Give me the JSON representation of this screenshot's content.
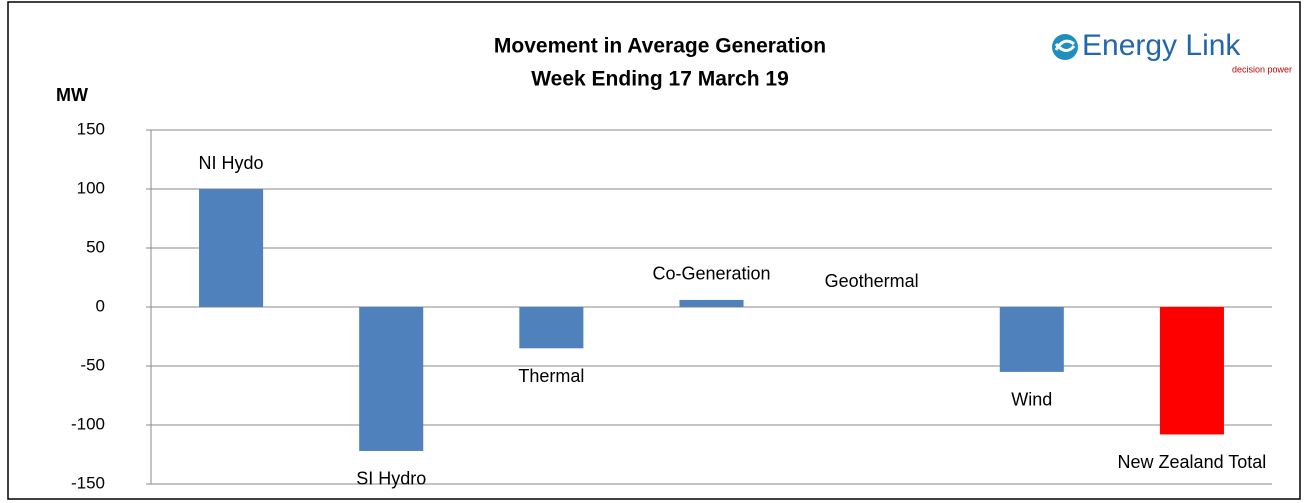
{
  "chart_data": {
    "type": "bar",
    "title": "Movement in Average Generation",
    "subtitle": "Week Ending 17 March 19",
    "y_label": "MW",
    "logo": "Energy Link",
    "logo_tagline": "decision power",
    "categories": [
      "NI Hydo",
      "SI Hydro",
      "Thermal",
      "Co-Generation",
      "Geothermal",
      "Wind",
      "New Zealand Total"
    ],
    "values": [
      100,
      -122,
      -35,
      6,
      0,
      -55,
      -108
    ],
    "colors": [
      "#4f81bd",
      "#4f81bd",
      "#4f81bd",
      "#4f81bd",
      "#4f81bd",
      "#4f81bd",
      "#ff0000"
    ],
    "ylim": [
      -150,
      150
    ],
    "yticks": [
      -150,
      -100,
      -50,
      0,
      50,
      100,
      150
    ],
    "grid": true
  }
}
